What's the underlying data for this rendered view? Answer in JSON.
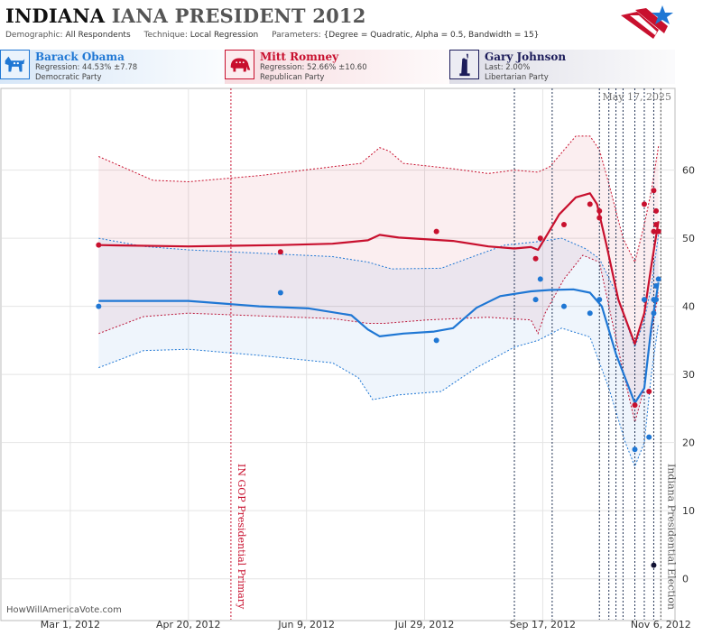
{
  "header": {
    "title_state": "INDIANA",
    "title_race": "IANA PRESIDENT 2012",
    "demographic_label": "Demographic:",
    "demographic_value": "All Respondents",
    "technique_label": "Technique:",
    "technique_value": "Local Regression",
    "parameters_label": "Parameters:",
    "parameters_value": "{Degree = Quadratic, Alpha = 0.5, Bandwidth = 15}"
  },
  "candidates": [
    {
      "name": "Barack Obama",
      "line1": "Regression: 44.53% ±7.78",
      "line2": "Democratic Party",
      "color": "#1f77d4",
      "icon": "donkey-icon"
    },
    {
      "name": "Mitt Romney",
      "line1": "Regression: 52.66% ±10.60",
      "line2": "Republican Party",
      "color": "#c8102e",
      "icon": "elephant-icon"
    },
    {
      "name": "Gary Johnson",
      "line1": "Last: 2.00%",
      "line2": "Libertarian Party",
      "color": "#1c1c5a",
      "icon": "statue-of-liberty-icon"
    }
  ],
  "chart_data": {
    "type": "line",
    "date_stamp": "May 17, 2025",
    "watermark": "HowWillAmericaVote.com",
    "x_range": [
      "2012-02-01",
      "2012-11-12"
    ],
    "ylim": [
      -6,
      72
    ],
    "y_ticks": [
      0,
      10,
      20,
      30,
      40,
      50,
      60
    ],
    "x_ticks": [
      {
        "date": "2012-03-01",
        "label": "Mar 1, 2012"
      },
      {
        "date": "2012-04-20",
        "label": "Apr 20, 2012"
      },
      {
        "date": "2012-06-09",
        "label": "Jun 9, 2012"
      },
      {
        "date": "2012-07-29",
        "label": "Jul 29, 2012"
      },
      {
        "date": "2012-09-17",
        "label": "Sep 17, 2012"
      },
      {
        "date": "2012-11-06",
        "label": "Nov 6, 2012"
      }
    ],
    "events": [
      {
        "date": "2012-05-08",
        "label": "IN GOP Presidential Primary",
        "color": "#c8102e"
      },
      {
        "date": "2012-11-06",
        "label": "Indiana Presidential Election",
        "color": "#555555"
      }
    ],
    "poll_dates": [
      "2012-09-05",
      "2012-09-21",
      "2012-10-11",
      "2012-10-15",
      "2012-10-18",
      "2012-10-21",
      "2012-10-26",
      "2012-10-30",
      "2012-11-03"
    ],
    "series": [
      {
        "name": "Mitt Romney",
        "color": "#c8102e",
        "points": [
          [
            "2012-03-13",
            49
          ],
          [
            "2012-05-29",
            48
          ],
          [
            "2012-08-03",
            51
          ],
          [
            "2012-09-14",
            47
          ],
          [
            "2012-09-16",
            50
          ],
          [
            "2012-09-26",
            52
          ],
          [
            "2012-10-07",
            55
          ],
          [
            "2012-10-11",
            54
          ],
          [
            "2012-10-11",
            53
          ],
          [
            "2012-10-26",
            25.5
          ],
          [
            "2012-10-30",
            55
          ],
          [
            "2012-11-01",
            27.5
          ],
          [
            "2012-11-03",
            57
          ],
          [
            "2012-11-03",
            51
          ],
          [
            "2012-11-04",
            54
          ],
          [
            "2012-11-04",
            52
          ],
          [
            "2012-11-05",
            51
          ]
        ],
        "trend": [
          [
            "2012-03-13",
            49
          ],
          [
            "2012-04-20",
            48.8
          ],
          [
            "2012-05-29",
            49
          ],
          [
            "2012-06-20",
            49.2
          ],
          [
            "2012-07-05",
            49.7
          ],
          [
            "2012-07-10",
            50.5
          ],
          [
            "2012-07-18",
            50.1
          ],
          [
            "2012-08-10",
            49.6
          ],
          [
            "2012-08-25",
            48.8
          ],
          [
            "2012-09-05",
            48.5
          ],
          [
            "2012-09-12",
            48.7
          ],
          [
            "2012-09-15",
            48.3
          ],
          [
            "2012-09-18",
            50
          ],
          [
            "2012-09-24",
            53.5
          ],
          [
            "2012-10-01",
            56
          ],
          [
            "2012-10-07",
            56.6
          ],
          [
            "2012-10-10",
            55
          ],
          [
            "2012-10-14",
            49
          ],
          [
            "2012-10-19",
            41
          ],
          [
            "2012-10-26",
            34.5
          ],
          [
            "2012-10-30",
            39
          ],
          [
            "2012-11-02",
            46
          ],
          [
            "2012-11-05",
            52.5
          ]
        ],
        "upper": [
          [
            "2012-03-13",
            62
          ],
          [
            "2012-04-05",
            58.5
          ],
          [
            "2012-04-20",
            58.3
          ],
          [
            "2012-05-20",
            59.2
          ],
          [
            "2012-06-20",
            60.5
          ],
          [
            "2012-07-02",
            61
          ],
          [
            "2012-07-10",
            63.3
          ],
          [
            "2012-07-14",
            62.8
          ],
          [
            "2012-07-20",
            61
          ],
          [
            "2012-08-10",
            60.2
          ],
          [
            "2012-08-25",
            59.5
          ],
          [
            "2012-09-05",
            60
          ],
          [
            "2012-09-15",
            59.7
          ],
          [
            "2012-09-20",
            60.5
          ],
          [
            "2012-10-01",
            65
          ],
          [
            "2012-10-07",
            65
          ],
          [
            "2012-10-11",
            63
          ],
          [
            "2012-10-15",
            58
          ],
          [
            "2012-10-21",
            50
          ],
          [
            "2012-10-26",
            46.5
          ],
          [
            "2012-10-30",
            52
          ],
          [
            "2012-11-02",
            57
          ],
          [
            "2012-11-05",
            63.5
          ]
        ],
        "lower": [
          [
            "2012-03-13",
            36
          ],
          [
            "2012-04-01",
            38.5
          ],
          [
            "2012-04-20",
            39
          ],
          [
            "2012-05-20",
            38.6
          ],
          [
            "2012-06-20",
            38.2
          ],
          [
            "2012-07-05",
            37.5
          ],
          [
            "2012-07-12",
            37.5
          ],
          [
            "2012-07-30",
            38
          ],
          [
            "2012-08-25",
            38.4
          ],
          [
            "2012-09-12",
            38
          ],
          [
            "2012-09-15",
            36
          ],
          [
            "2012-09-18",
            39
          ],
          [
            "2012-09-26",
            44
          ],
          [
            "2012-10-04",
            47.5
          ],
          [
            "2012-10-11",
            46.5
          ],
          [
            "2012-10-15",
            40
          ],
          [
            "2012-10-21",
            30.5
          ],
          [
            "2012-10-26",
            23
          ],
          [
            "2012-10-30",
            28
          ],
          [
            "2012-11-02",
            36
          ],
          [
            "2012-11-05",
            42
          ]
        ]
      },
      {
        "name": "Barack Obama",
        "color": "#1f77d4",
        "points": [
          [
            "2012-03-13",
            40
          ],
          [
            "2012-05-29",
            42
          ],
          [
            "2012-08-03",
            35
          ],
          [
            "2012-09-14",
            41
          ],
          [
            "2012-09-16",
            44
          ],
          [
            "2012-09-26",
            40
          ],
          [
            "2012-10-07",
            39
          ],
          [
            "2012-10-11",
            41
          ],
          [
            "2012-10-26",
            19
          ],
          [
            "2012-10-30",
            41
          ],
          [
            "2012-11-01",
            20.8
          ],
          [
            "2012-11-03",
            39
          ],
          [
            "2012-11-03",
            41
          ],
          [
            "2012-11-04",
            43
          ],
          [
            "2012-11-04",
            41
          ],
          [
            "2012-11-05",
            44
          ]
        ],
        "trend": [
          [
            "2012-03-13",
            40.8
          ],
          [
            "2012-04-20",
            40.8
          ],
          [
            "2012-05-20",
            40
          ],
          [
            "2012-06-10",
            39.7
          ],
          [
            "2012-06-28",
            38.7
          ],
          [
            "2012-07-05",
            36.6
          ],
          [
            "2012-07-10",
            35.6
          ],
          [
            "2012-07-20",
            36
          ],
          [
            "2012-08-02",
            36.3
          ],
          [
            "2012-08-10",
            36.8
          ],
          [
            "2012-08-20",
            39.8
          ],
          [
            "2012-08-30",
            41.5
          ],
          [
            "2012-09-12",
            42.2
          ],
          [
            "2012-09-20",
            42.4
          ],
          [
            "2012-09-30",
            42.5
          ],
          [
            "2012-10-07",
            42
          ],
          [
            "2012-10-12",
            40
          ],
          [
            "2012-10-18",
            33
          ],
          [
            "2012-10-26",
            25.8
          ],
          [
            "2012-10-30",
            28
          ],
          [
            "2012-11-02",
            37
          ],
          [
            "2012-11-05",
            43.5
          ]
        ],
        "upper": [
          [
            "2012-03-13",
            50
          ],
          [
            "2012-04-01",
            48.8
          ],
          [
            "2012-04-20",
            48.3
          ],
          [
            "2012-05-20",
            47.8
          ],
          [
            "2012-06-20",
            47.3
          ],
          [
            "2012-07-05",
            46.5
          ],
          [
            "2012-07-15",
            45.5
          ],
          [
            "2012-08-05",
            45.6
          ],
          [
            "2012-08-20",
            47.5
          ],
          [
            "2012-09-01",
            49
          ],
          [
            "2012-09-15",
            49.5
          ],
          [
            "2012-09-25",
            50
          ],
          [
            "2012-10-05",
            48.5
          ],
          [
            "2012-10-11",
            47
          ],
          [
            "2012-10-18",
            42
          ],
          [
            "2012-10-26",
            34
          ],
          [
            "2012-10-30",
            38
          ],
          [
            "2012-11-02",
            43
          ],
          [
            "2012-11-05",
            50.5
          ]
        ],
        "lower": [
          [
            "2012-03-13",
            31
          ],
          [
            "2012-04-01",
            33.5
          ],
          [
            "2012-04-20",
            33.7
          ],
          [
            "2012-05-20",
            32.8
          ],
          [
            "2012-06-20",
            31.7
          ],
          [
            "2012-07-01",
            29.5
          ],
          [
            "2012-07-07",
            26.3
          ],
          [
            "2012-07-18",
            27
          ],
          [
            "2012-08-05",
            27.5
          ],
          [
            "2012-08-20",
            31
          ],
          [
            "2012-09-05",
            34
          ],
          [
            "2012-09-15",
            35
          ],
          [
            "2012-09-25",
            36.8
          ],
          [
            "2012-10-07",
            35.5
          ],
          [
            "2012-10-15",
            28
          ],
          [
            "2012-10-22",
            20
          ],
          [
            "2012-10-26",
            16.5
          ],
          [
            "2012-10-30",
            20
          ],
          [
            "2012-11-02",
            30
          ],
          [
            "2012-11-05",
            37.5
          ]
        ]
      },
      {
        "name": "Gary Johnson",
        "color": "#111133",
        "points": [
          [
            "2012-11-03",
            2
          ]
        ]
      }
    ]
  }
}
